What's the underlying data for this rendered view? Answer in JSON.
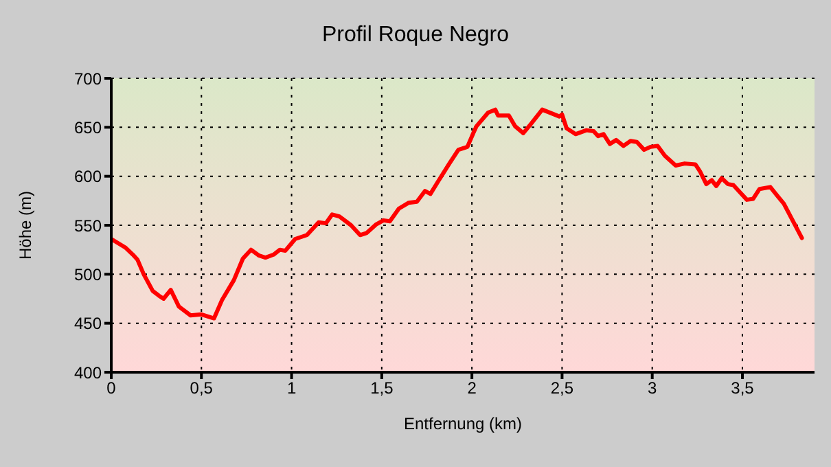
{
  "chart_data": {
    "type": "line",
    "title": "Profil Roque Negro",
    "xlabel": "Entfernung (km)",
    "ylabel": "Höhe (m)",
    "x": [
      0,
      0.08,
      0.12,
      0.145,
      0.18,
      0.23,
      0.265,
      0.29,
      0.33,
      0.375,
      0.44,
      0.5,
      0.57,
      0.615,
      0.68,
      0.73,
      0.775,
      0.82,
      0.855,
      0.9,
      0.935,
      0.965,
      1.02,
      1.085,
      1.15,
      1.19,
      1.225,
      1.265,
      1.33,
      1.38,
      1.415,
      1.47,
      1.51,
      1.545,
      1.595,
      1.65,
      1.695,
      1.74,
      1.77,
      1.81,
      1.875,
      1.925,
      1.975,
      2.01,
      2.025,
      2.09,
      2.13,
      2.145,
      2.205,
      2.24,
      2.285,
      2.33,
      2.39,
      2.445,
      2.485,
      2.5,
      2.525,
      2.575,
      2.635,
      2.675,
      2.7,
      2.73,
      2.765,
      2.8,
      2.84,
      2.88,
      2.915,
      2.955,
      2.99,
      3.03,
      3.07,
      3.13,
      3.18,
      3.24,
      3.265,
      3.3,
      3.33,
      3.355,
      3.385,
      3.42,
      3.45,
      3.49,
      3.525,
      3.56,
      3.595,
      3.655,
      3.69,
      3.73,
      3.77,
      3.83
    ],
    "series": [
      {
        "color": "#ff0000",
        "values": [
          536,
          527,
          520,
          515,
          500,
          483,
          478,
          475,
          484,
          467,
          458,
          459,
          455,
          474,
          494,
          516,
          525,
          519,
          517,
          520,
          525,
          524,
          536,
          540,
          553,
          552,
          561,
          559,
          550,
          540,
          542,
          551,
          555,
          554,
          567,
          573,
          574,
          585,
          582,
          594,
          613,
          627,
          630,
          645,
          651,
          665,
          668,
          662,
          662,
          651,
          644,
          654,
          668,
          664,
          661,
          663,
          649,
          643,
          647,
          646,
          641,
          643,
          633,
          637,
          631,
          636,
          635,
          627,
          630,
          631,
          621,
          611,
          613,
          612,
          605,
          592,
          596,
          590,
          598,
          592,
          591,
          583,
          576,
          577,
          587,
          589,
          581,
          572,
          558,
          537
        ]
      }
    ],
    "xlim": [
      0,
      3.9
    ],
    "xticks": [
      0,
      {
        "value": 0.5,
        "label": "0,5"
      },
      1,
      {
        "value": 1.5,
        "label": "1,5"
      },
      2,
      {
        "value": 2.5,
        "label": "2,5"
      },
      3,
      {
        "value": 3.5,
        "label": "3,5"
      }
    ],
    "ylim": [
      400,
      700
    ],
    "yticks": [
      400,
      450,
      500,
      550,
      600,
      650,
      700
    ],
    "grid": true,
    "marker": "none",
    "line_style": "solid"
  }
}
